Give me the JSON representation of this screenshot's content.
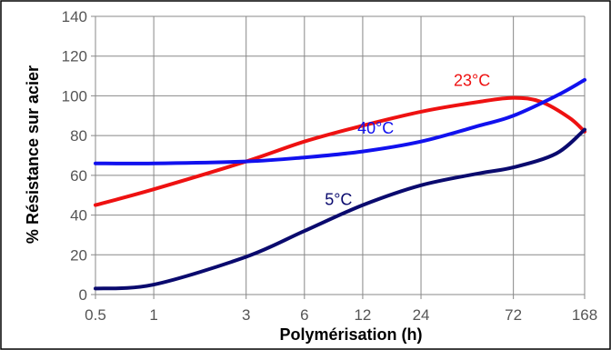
{
  "chart_data": {
    "type": "line",
    "xlabel": "Polymérisation (h)",
    "ylabel": "% Résistance sur acier",
    "x_scale": "log",
    "xlim": [
      0.5,
      168
    ],
    "ylim": [
      0,
      140
    ],
    "x_ticks": [
      0.5,
      1,
      3,
      6,
      12,
      24,
      72,
      168
    ],
    "x_tick_labels": [
      "0.5",
      "1",
      "3",
      "6",
      "12",
      "24",
      "72",
      "168"
    ],
    "y_ticks": [
      0,
      20,
      40,
      60,
      80,
      100,
      120,
      140
    ],
    "y_tick_labels": [
      "0",
      "20",
      "40",
      "60",
      "80",
      "100",
      "120",
      "140"
    ],
    "grid": true,
    "series": [
      {
        "name": "23°C",
        "color": "#ee1111",
        "label_at": [
          44,
          105
        ],
        "points": [
          [
            0.5,
            45
          ],
          [
            1,
            53
          ],
          [
            3,
            67
          ],
          [
            6,
            77
          ],
          [
            12,
            85
          ],
          [
            24,
            92
          ],
          [
            48,
            97
          ],
          [
            72,
            99
          ],
          [
            100,
            97
          ],
          [
            140,
            89
          ],
          [
            168,
            82
          ]
        ]
      },
      {
        "name": "40°C",
        "color": "#1111ee",
        "label_at": [
          14,
          81
        ],
        "points": [
          [
            0.5,
            66
          ],
          [
            1,
            66
          ],
          [
            3,
            67
          ],
          [
            6,
            69
          ],
          [
            12,
            72
          ],
          [
            24,
            77
          ],
          [
            48,
            85
          ],
          [
            72,
            90
          ],
          [
            120,
            100
          ],
          [
            168,
            108
          ]
        ]
      },
      {
        "name": "5°C",
        "color": "#0a0a6e",
        "label_at": [
          9,
          45
        ],
        "points": [
          [
            0.5,
            3
          ],
          [
            1,
            5
          ],
          [
            3,
            19
          ],
          [
            6,
            32
          ],
          [
            12,
            45
          ],
          [
            24,
            55
          ],
          [
            48,
            61
          ],
          [
            72,
            64
          ],
          [
            120,
            71
          ],
          [
            168,
            83
          ]
        ]
      }
    ]
  }
}
